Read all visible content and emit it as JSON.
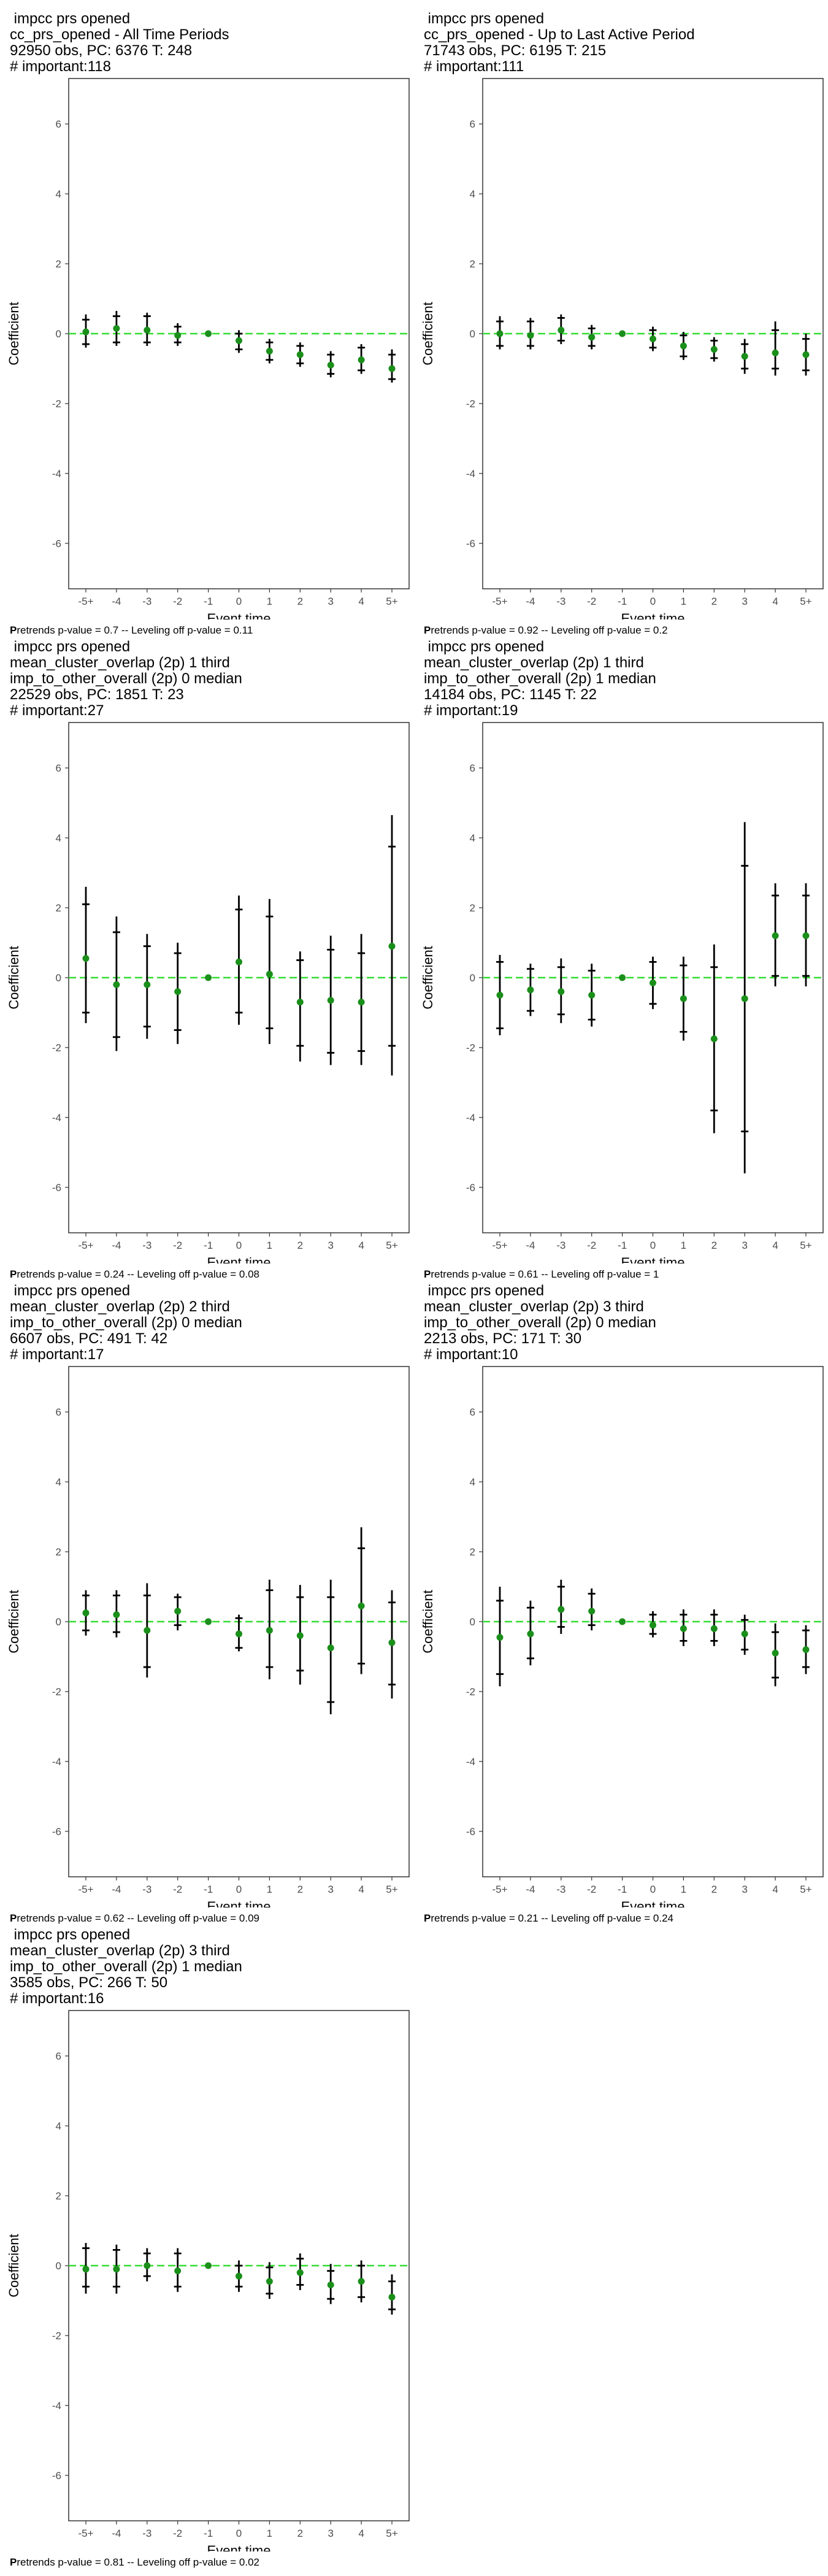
{
  "y_ticks": [
    "6",
    "4",
    "2",
    "0",
    "-2",
    "-4",
    "-6"
  ],
  "colors": {
    "points": "#1a8f1a",
    "zero_line": "#33dd33",
    "bars": "#000000"
  },
  "chart_data": [
    {
      "type": "scatter",
      "header": [
        " impcc prs opened",
        "cc_prs_opened - All Time Periods",
        "92950 obs, PC: 6376 T: 248",
        "# important:118"
      ],
      "xlabel": "Event time",
      "ylabel": "Coefficient",
      "categories": [
        "-5+",
        "-4",
        "-3",
        "-2",
        "-1",
        "0",
        "1",
        "2",
        "3",
        "4",
        "5+"
      ],
      "ylim": [
        -7.3,
        7.3
      ],
      "estimate": [
        0.05,
        0.15,
        0.1,
        -0.05,
        0.0,
        -0.2,
        -0.5,
        -0.6,
        -0.9,
        -0.75,
        -1.0
      ],
      "ci_inner": [
        [
          -0.3,
          0.4
        ],
        [
          -0.25,
          0.5
        ],
        [
          -0.25,
          0.5
        ],
        [
          -0.25,
          0.2
        ],
        [
          0,
          0
        ],
        [
          -0.45,
          0.0
        ],
        [
          -0.75,
          -0.25
        ],
        [
          -0.85,
          -0.35
        ],
        [
          -1.15,
          -0.6
        ],
        [
          -1.05,
          -0.4
        ],
        [
          -1.3,
          -0.6
        ]
      ],
      "ci_outer": [
        [
          -0.4,
          0.55
        ],
        [
          -0.35,
          0.65
        ],
        [
          -0.35,
          0.6
        ],
        [
          -0.35,
          0.3
        ],
        [
          0,
          0
        ],
        [
          -0.55,
          0.1
        ],
        [
          -0.85,
          -0.15
        ],
        [
          -0.95,
          -0.25
        ],
        [
          -1.25,
          -0.5
        ],
        [
          -1.15,
          -0.3
        ],
        [
          -1.4,
          -0.45
        ]
      ],
      "footnote": {
        "lead": "P",
        "rest": "retrends p-value = 0.7 -- Leveling off p-value = 0.11"
      }
    },
    {
      "type": "scatter",
      "header": [
        " impcc prs opened",
        "cc_prs_opened - Up to Last Active Period",
        "71743 obs, PC: 6195 T: 215",
        "# important:111"
      ],
      "xlabel": "Event time",
      "ylabel": "Coefficient",
      "categories": [
        "-5+",
        "-4",
        "-3",
        "-2",
        "-1",
        "0",
        "1",
        "2",
        "3",
        "4",
        "5+"
      ],
      "ylim": [
        -7.3,
        7.3
      ],
      "estimate": [
        0.0,
        -0.05,
        0.1,
        -0.1,
        0.0,
        -0.15,
        -0.35,
        -0.45,
        -0.65,
        -0.55,
        -0.6
      ],
      "ci_inner": [
        [
          -0.35,
          0.35
        ],
        [
          -0.35,
          0.35
        ],
        [
          -0.2,
          0.45
        ],
        [
          -0.35,
          0.15
        ],
        [
          0,
          0
        ],
        [
          -0.4,
          0.1
        ],
        [
          -0.65,
          -0.05
        ],
        [
          -0.7,
          -0.2
        ],
        [
          -1.0,
          -0.3
        ],
        [
          -1.0,
          0.1
        ],
        [
          -1.05,
          -0.15
        ]
      ],
      "ci_outer": [
        [
          -0.45,
          0.5
        ],
        [
          -0.45,
          0.45
        ],
        [
          -0.3,
          0.55
        ],
        [
          -0.45,
          0.25
        ],
        [
          0,
          0
        ],
        [
          -0.5,
          0.2
        ],
        [
          -0.75,
          0.05
        ],
        [
          -0.8,
          -0.1
        ],
        [
          -1.15,
          -0.15
        ],
        [
          -1.2,
          0.35
        ],
        [
          -1.2,
          0.0
        ]
      ],
      "footnote": {
        "lead": "P",
        "rest": "retrends p-value = 0.92 -- Leveling off p-value = 0.2"
      }
    },
    {
      "type": "scatter",
      "header": [
        " impcc prs opened",
        "mean_cluster_overlap (2p) 1 third",
        "imp_to_other_overall (2p) 0 median",
        "22529 obs, PC: 1851 T: 23",
        "# important:27"
      ],
      "xlabel": "Event time",
      "ylabel": "Coefficient",
      "categories": [
        "-5+",
        "-4",
        "-3",
        "-2",
        "-1",
        "0",
        "1",
        "2",
        "3",
        "4",
        "5+"
      ],
      "ylim": [
        -7.3,
        7.3
      ],
      "estimate": [
        0.55,
        -0.2,
        -0.2,
        -0.4,
        0.0,
        0.45,
        0.1,
        -0.7,
        -0.65,
        -0.7,
        0.9
      ],
      "ci_inner": [
        [
          -1.0,
          2.1
        ],
        [
          -1.7,
          1.3
        ],
        [
          -1.4,
          0.9
        ],
        [
          -1.5,
          0.7
        ],
        [
          0,
          0
        ],
        [
          -1.0,
          1.95
        ],
        [
          -1.45,
          1.75
        ],
        [
          -1.95,
          0.5
        ],
        [
          -2.15,
          0.8
        ],
        [
          -2.1,
          0.7
        ],
        [
          -1.95,
          3.75
        ]
      ],
      "ci_outer": [
        [
          -1.3,
          2.6
        ],
        [
          -2.1,
          1.75
        ],
        [
          -1.75,
          1.25
        ],
        [
          -1.9,
          1.0
        ],
        [
          0,
          0
        ],
        [
          -1.35,
          2.35
        ],
        [
          -1.9,
          2.25
        ],
        [
          -2.4,
          0.75
        ],
        [
          -2.5,
          1.2
        ],
        [
          -2.5,
          1.25
        ],
        [
          -2.8,
          4.65
        ]
      ],
      "footnote": {
        "lead": "P",
        "rest": "retrends p-value = 0.24 -- Leveling off p-value = 0.08"
      }
    },
    {
      "type": "scatter",
      "header": [
        " impcc prs opened",
        "mean_cluster_overlap (2p) 1 third",
        "imp_to_other_overall (2p) 1 median",
        "14184 obs, PC: 1145 T: 22",
        "# important:19"
      ],
      "xlabel": "Event time",
      "ylabel": "Coefficient",
      "categories": [
        "-5+",
        "-4",
        "-3",
        "-2",
        "-1",
        "0",
        "1",
        "2",
        "3",
        "4",
        "5+"
      ],
      "ylim": [
        -7.3,
        7.3
      ],
      "estimate": [
        -0.5,
        -0.35,
        -0.4,
        -0.5,
        0.0,
        -0.15,
        -0.6,
        -1.75,
        -0.6,
        1.2,
        1.2
      ],
      "ci_inner": [
        [
          -1.45,
          0.45
        ],
        [
          -0.95,
          0.25
        ],
        [
          -1.05,
          0.3
        ],
        [
          -1.2,
          0.2
        ],
        [
          0,
          0
        ],
        [
          -0.75,
          0.45
        ],
        [
          -1.55,
          0.35
        ],
        [
          -3.8,
          0.3
        ],
        [
          -4.4,
          3.2
        ],
        [
          0.05,
          2.35
        ],
        [
          0.05,
          2.35
        ]
      ],
      "ci_outer": [
        [
          -1.65,
          0.65
        ],
        [
          -1.1,
          0.4
        ],
        [
          -1.3,
          0.55
        ],
        [
          -1.4,
          0.4
        ],
        [
          0,
          0
        ],
        [
          -0.9,
          0.6
        ],
        [
          -1.8,
          0.6
        ],
        [
          -4.45,
          0.95
        ],
        [
          -5.6,
          4.45
        ],
        [
          -0.25,
          2.7
        ],
        [
          -0.25,
          2.7
        ]
      ],
      "footnote": {
        "lead": "P",
        "rest": "retrends p-value = 0.61 -- Leveling off p-value = 1"
      }
    },
    {
      "type": "scatter",
      "header": [
        " impcc prs opened",
        "mean_cluster_overlap (2p) 2 third",
        "imp_to_other_overall (2p) 0 median",
        "6607 obs, PC: 491 T: 42",
        "# important:17"
      ],
      "xlabel": "Event time",
      "ylabel": "Coefficient",
      "categories": [
        "-5+",
        "-4",
        "-3",
        "-2",
        "-1",
        "0",
        "1",
        "2",
        "3",
        "4",
        "5+"
      ],
      "ylim": [
        -7.3,
        7.3
      ],
      "estimate": [
        0.25,
        0.2,
        -0.25,
        0.3,
        0.0,
        -0.35,
        -0.25,
        -0.4,
        -0.75,
        0.45,
        -0.6
      ],
      "ci_inner": [
        [
          -0.25,
          0.75
        ],
        [
          -0.3,
          0.75
        ],
        [
          -1.3,
          0.75
        ],
        [
          -0.1,
          0.7
        ],
        [
          0,
          0
        ],
        [
          -0.75,
          0.1
        ],
        [
          -1.3,
          0.9
        ],
        [
          -1.4,
          0.7
        ],
        [
          -2.3,
          0.7
        ],
        [
          -1.2,
          2.1
        ],
        [
          -1.8,
          0.55
        ]
      ],
      "ci_outer": [
        [
          -0.4,
          0.9
        ],
        [
          -0.45,
          0.9
        ],
        [
          -1.6,
          1.1
        ],
        [
          -0.25,
          0.8
        ],
        [
          0,
          0
        ],
        [
          -0.85,
          0.2
        ],
        [
          -1.65,
          1.2
        ],
        [
          -1.8,
          1.05
        ],
        [
          -2.65,
          1.2
        ],
        [
          -1.5,
          2.7
        ],
        [
          -2.2,
          0.9
        ]
      ],
      "footnote": {
        "lead": "P",
        "rest": "retrends p-value = 0.62 -- Leveling off p-value = 0.09"
      }
    },
    {
      "type": "scatter",
      "header": [
        " impcc prs opened",
        "mean_cluster_overlap (2p) 3 third",
        "imp_to_other_overall (2p) 0 median",
        "2213 obs, PC: 171 T: 30",
        "# important:10"
      ],
      "xlabel": "Event time",
      "ylabel": "Coefficient",
      "categories": [
        "-5+",
        "-4",
        "-3",
        "-2",
        "-1",
        "0",
        "1",
        "2",
        "3",
        "4",
        "5+"
      ],
      "ylim": [
        -7.3,
        7.3
      ],
      "estimate": [
        -0.45,
        -0.35,
        0.35,
        0.3,
        0.0,
        -0.1,
        -0.2,
        -0.2,
        -0.35,
        -0.9,
        -0.8
      ],
      "ci_inner": [
        [
          -1.5,
          0.6
        ],
        [
          -1.05,
          0.4
        ],
        [
          -0.15,
          1.0
        ],
        [
          -0.1,
          0.8
        ],
        [
          0,
          0
        ],
        [
          -0.35,
          0.2
        ],
        [
          -0.55,
          0.2
        ],
        [
          -0.55,
          0.2
        ],
        [
          -0.8,
          0.05
        ],
        [
          -1.6,
          -0.3
        ],
        [
          -1.3,
          -0.25
        ]
      ],
      "ci_outer": [
        [
          -1.85,
          1.0
        ],
        [
          -1.25,
          0.6
        ],
        [
          -0.35,
          1.2
        ],
        [
          -0.25,
          0.95
        ],
        [
          0,
          0
        ],
        [
          -0.45,
          0.3
        ],
        [
          -0.7,
          0.35
        ],
        [
          -0.7,
          0.35
        ],
        [
          -0.95,
          0.2
        ],
        [
          -1.85,
          -0.05
        ],
        [
          -1.5,
          -0.1
        ]
      ],
      "footnote": {
        "lead": "P",
        "rest": "retrends p-value = 0.21 -- Leveling off p-value = 0.24"
      }
    },
    {
      "type": "scatter",
      "header": [
        " impcc prs opened",
        "mean_cluster_overlap (2p) 3 third",
        "imp_to_other_overall (2p) 1 median",
        "3585 obs, PC: 266 T: 50",
        "# important:16"
      ],
      "xlabel": "Event time",
      "ylabel": "Coefficient",
      "categories": [
        "-5+",
        "-4",
        "-3",
        "-2",
        "-1",
        "0",
        "1",
        "2",
        "3",
        "4",
        "5+"
      ],
      "ylim": [
        -7.3,
        7.3
      ],
      "estimate": [
        -0.1,
        -0.1,
        0.0,
        -0.15,
        0.0,
        -0.3,
        -0.45,
        -0.2,
        -0.55,
        -0.45,
        -0.9
      ],
      "ci_inner": [
        [
          -0.6,
          0.5
        ],
        [
          -0.6,
          0.45
        ],
        [
          -0.3,
          0.35
        ],
        [
          -0.6,
          0.35
        ],
        [
          0,
          0
        ],
        [
          -0.6,
          0.0
        ],
        [
          -0.8,
          -0.05
        ],
        [
          -0.55,
          0.2
        ],
        [
          -0.95,
          -0.15
        ],
        [
          -0.9,
          0.0
        ],
        [
          -1.25,
          -0.45
        ]
      ],
      "ci_outer": [
        [
          -0.8,
          0.65
        ],
        [
          -0.8,
          0.6
        ],
        [
          -0.45,
          0.5
        ],
        [
          -0.75,
          0.5
        ],
        [
          0,
          0
        ],
        [
          -0.75,
          0.15
        ],
        [
          -0.95,
          0.1
        ],
        [
          -0.7,
          0.35
        ],
        [
          -1.1,
          0.05
        ],
        [
          -1.05,
          0.15
        ],
        [
          -1.4,
          -0.25
        ]
      ],
      "footnote": {
        "lead": "P",
        "rest": "retrends p-value = 0.81 -- Leveling off p-value = 0.02"
      }
    }
  ]
}
